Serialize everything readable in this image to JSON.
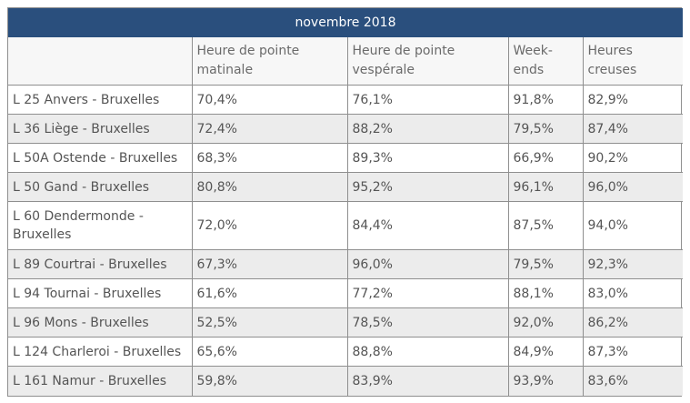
{
  "table": {
    "title": "novembre 2018",
    "headers": [
      "",
      "Heure de pointe matinale",
      "Heure de pointe vespérale",
      "Week-ends",
      "Heures creuses"
    ],
    "rows": [
      [
        "L 25 Anvers - Bruxelles",
        "70,4%",
        "76,1%",
        "91,8%",
        "82,9%"
      ],
      [
        "L 36 Liège - Bruxelles",
        "72,4%",
        "88,2%",
        "79,5%",
        "87,4%"
      ],
      [
        "L 50A Ostende - Bruxelles",
        "68,3%",
        "89,3%",
        "66,9%",
        "90,2%"
      ],
      [
        "L 50 Gand - Bruxelles",
        "80,8%",
        "95,2%",
        "96,1%",
        "96,0%"
      ],
      [
        "L 60 Dendermonde - Bruxelles",
        "72,0%",
        "84,4%",
        "87,5%",
        "94,0%"
      ],
      [
        "L 89 Courtrai - Bruxelles",
        "67,3%",
        "96,0%",
        "79,5%",
        "92,3%"
      ],
      [
        "L 94 Tournai - Bruxelles",
        "61,6%",
        "77,2%",
        "88,1%",
        "83,0%"
      ],
      [
        "L 96 Mons - Bruxelles",
        "52,5%",
        "78,5%",
        "92,0%",
        "86,2%"
      ],
      [
        "L 124 Charleroi - Bruxelles",
        "65,6%",
        "88,8%",
        "84,9%",
        "87,3%"
      ],
      [
        "L 161 Namur - Bruxelles",
        "59,8%",
        "83,9%",
        "93,9%",
        "83,6%"
      ]
    ]
  }
}
